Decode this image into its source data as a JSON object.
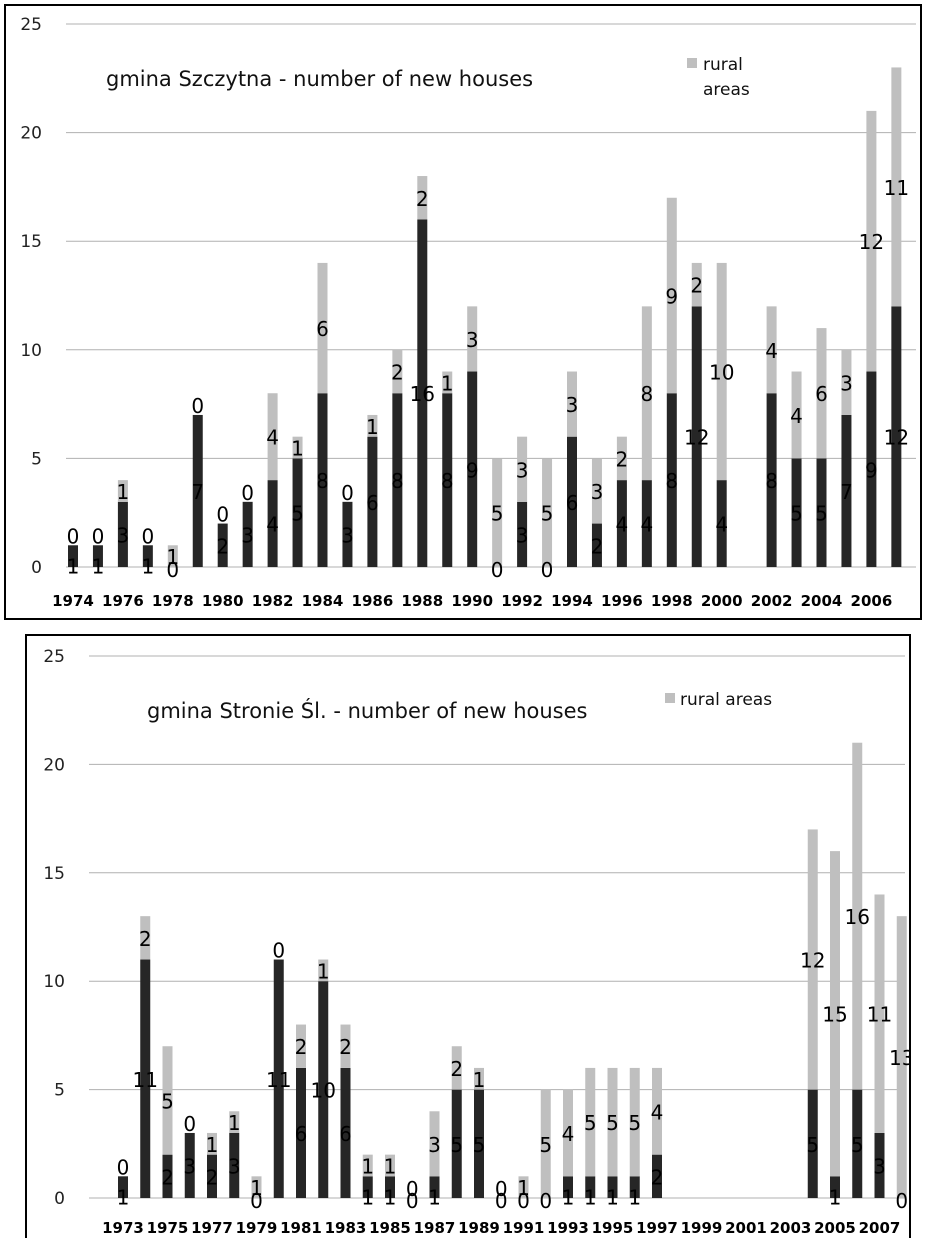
{
  "colors": {
    "dark": "#262626",
    "rural": "#bfbfbf",
    "grid": "#b0b0b0"
  },
  "chart_data": [
    {
      "type": "bar",
      "stacked": true,
      "title": "gmina Szczytna - number of new houses",
      "legend": [
        {
          "label": "rural areas",
          "color": "#bfbfbf"
        }
      ],
      "legend_position": "top-right",
      "ylim": [
        0,
        25
      ],
      "yticks": [
        0,
        5,
        10,
        15,
        20,
        25
      ],
      "grid": true,
      "categories": [
        "1974",
        "1975",
        "1976",
        "1977",
        "1978",
        "1979",
        "1980",
        "1981",
        "1982",
        "1983",
        "1984",
        "1985",
        "1986",
        "1987",
        "1988",
        "1989",
        "1990",
        "1991",
        "1992",
        "1993",
        "1994",
        "1995",
        "1996",
        "1997",
        "1998",
        "1999",
        "2000",
        "2001",
        "2002",
        "2003",
        "2004",
        "2005",
        "2006",
        "2007"
      ],
      "xtick_labels": [
        "1974",
        "1976",
        "1978",
        "1980",
        "1982",
        "1984",
        "1986",
        "1988",
        "1990",
        "1992",
        "1994",
        "1996",
        "1998",
        "2000",
        "2002",
        "2004",
        "2006"
      ],
      "series": [
        {
          "values": [
            1,
            1,
            3,
            1,
            0,
            7,
            2,
            3,
            4,
            5,
            8,
            3,
            6,
            8,
            16,
            8,
            9,
            0,
            3,
            0,
            6,
            2,
            4,
            4,
            8,
            12,
            4,
            null,
            8,
            5,
            5,
            7,
            9,
            12
          ]
        },
        {
          "name": "rural areas",
          "values": [
            0,
            0,
            1,
            0,
            1,
            0,
            0,
            0,
            4,
            1,
            6,
            0,
            1,
            2,
            2,
            1,
            3,
            5,
            3,
            5,
            3,
            3,
            2,
            8,
            9,
            2,
            10,
            null,
            4,
            4,
            6,
            3,
            12,
            11
          ]
        }
      ]
    },
    {
      "type": "bar",
      "stacked": true,
      "title": "gmina Stronie Śl. - number  of new houses",
      "legend": [
        {
          "label": "rural areas",
          "color": "#bfbfbf"
        }
      ],
      "legend_position": "top-right",
      "ylim": [
        0,
        25
      ],
      "yticks": [
        0,
        5,
        10,
        15,
        20,
        25
      ],
      "grid": true,
      "categories": [
        "1973",
        "1974",
        "1975",
        "1976",
        "1977",
        "1978",
        "1979",
        "1980",
        "1981",
        "1982",
        "1983",
        "1984",
        "1985",
        "1986",
        "1987",
        "1988",
        "1989",
        "1990",
        "1991",
        "1992",
        "1993",
        "1994",
        "1995",
        "1996",
        "1997",
        "1998",
        "1999",
        "2000",
        "2001",
        "2002",
        "2003",
        "2004",
        "2005",
        "2006",
        "2007",
        "2008"
      ],
      "xtick_labels": [
        "1973",
        "1975",
        "1977",
        "1979",
        "1981",
        "1983",
        "1985",
        "1987",
        "1989",
        "1991",
        "1993",
        "1995",
        "1997",
        "1999",
        "2001",
        "2003",
        "2005",
        "2007"
      ],
      "series": [
        {
          "values": [
            1,
            11,
            2,
            3,
            2,
            3,
            0,
            11,
            6,
            10,
            6,
            1,
            1,
            0,
            1,
            5,
            5,
            0,
            0,
            0,
            1,
            1,
            1,
            1,
            2,
            null,
            null,
            null,
            null,
            null,
            null,
            5,
            1,
            5,
            3,
            0
          ]
        },
        {
          "name": "rural areas",
          "values": [
            0,
            2,
            5,
            0,
            1,
            1,
            1,
            0,
            2,
            1,
            2,
            1,
            1,
            0,
            3,
            2,
            1,
            0,
            1,
            5,
            4,
            5,
            5,
            5,
            4,
            null,
            null,
            null,
            null,
            null,
            null,
            12,
            15,
            16,
            11,
            13
          ]
        }
      ]
    }
  ]
}
